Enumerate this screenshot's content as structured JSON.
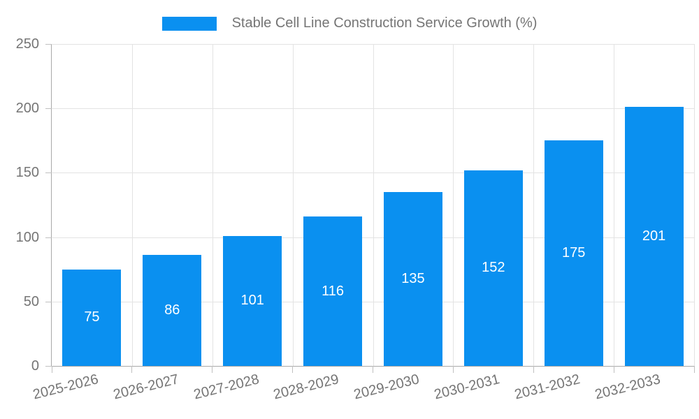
{
  "chart_data": {
    "type": "bar",
    "series_name": "Stable Cell Line Construction Service Growth (%)",
    "categories": [
      "2025-2026",
      "2026-2027",
      "2027-2028",
      "2028-2029",
      "2029-2030",
      "2030-2031",
      "2031-2032",
      "2032-2033"
    ],
    "values": [
      75,
      86,
      101,
      116,
      135,
      152,
      175,
      201
    ],
    "ylim": [
      0,
      250
    ],
    "yticks": [
      0,
      50,
      100,
      150,
      200,
      250
    ],
    "grid": true,
    "legend_position": "top-center",
    "colors": {
      "bar": "#0a90f0",
      "bar_label": "#ffffff",
      "axis_text": "#757575",
      "gridline": "#e3e3e3",
      "axis_line": "#a8a8a8",
      "tick": "#c0c0c0",
      "background": "#ffffff"
    }
  }
}
